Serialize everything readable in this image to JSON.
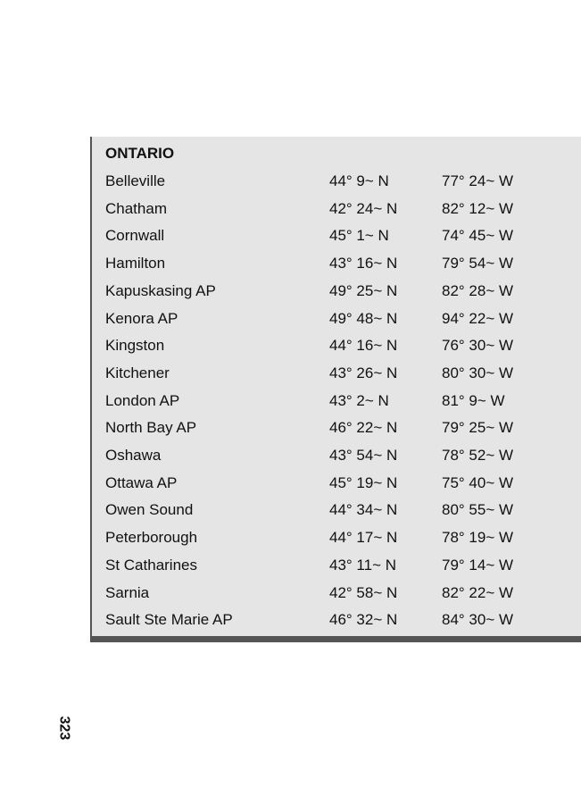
{
  "section_title": "ONTARIO",
  "rows": [
    {
      "city": "Belleville",
      "lat": "44° 9~ N",
      "lon": "77° 24~ W"
    },
    {
      "city": "Chatham",
      "lat": "42° 24~ N",
      "lon": "82° 12~ W"
    },
    {
      "city": "Cornwall",
      "lat": "45° 1~ N",
      "lon": "74° 45~ W"
    },
    {
      "city": "Hamilton",
      "lat": "43° 16~ N",
      "lon": "79° 54~ W"
    },
    {
      "city": "Kapuskasing AP",
      "lat": "49° 25~ N",
      "lon": "82° 28~ W"
    },
    {
      "city": "Kenora AP",
      "lat": "49° 48~ N",
      "lon": "94° 22~ W"
    },
    {
      "city": "Kingston",
      "lat": "44° 16~ N",
      "lon": "76° 30~ W"
    },
    {
      "city": "Kitchener",
      "lat": "43° 26~ N",
      "lon": "80° 30~ W"
    },
    {
      "city": "London AP",
      "lat": "43° 2~ N",
      "lon": "81° 9~ W"
    },
    {
      "city": "North Bay AP",
      "lat": "46° 22~ N",
      "lon": "79° 25~ W"
    },
    {
      "city": "Oshawa",
      "lat": "43° 54~ N",
      "lon": "78° 52~ W"
    },
    {
      "city": "Ottawa AP",
      "lat": "45° 19~ N",
      "lon": "75° 40~ W"
    },
    {
      "city": "Owen Sound",
      "lat": "44° 34~ N",
      "lon": "80° 55~ W"
    },
    {
      "city": "Peterborough",
      "lat": "44° 17~ N",
      "lon": "78° 19~ W"
    },
    {
      "city": "St Catharines",
      "lat": "43° 11~ N",
      "lon": "79° 14~ W"
    },
    {
      "city": "Sarnia",
      "lat": "42° 58~ N",
      "lon": "82° 22~ W"
    },
    {
      "city": "Sault Ste Marie AP",
      "lat": "46° 32~ N",
      "lon": "84° 30~ W"
    }
  ],
  "page_number": "323"
}
